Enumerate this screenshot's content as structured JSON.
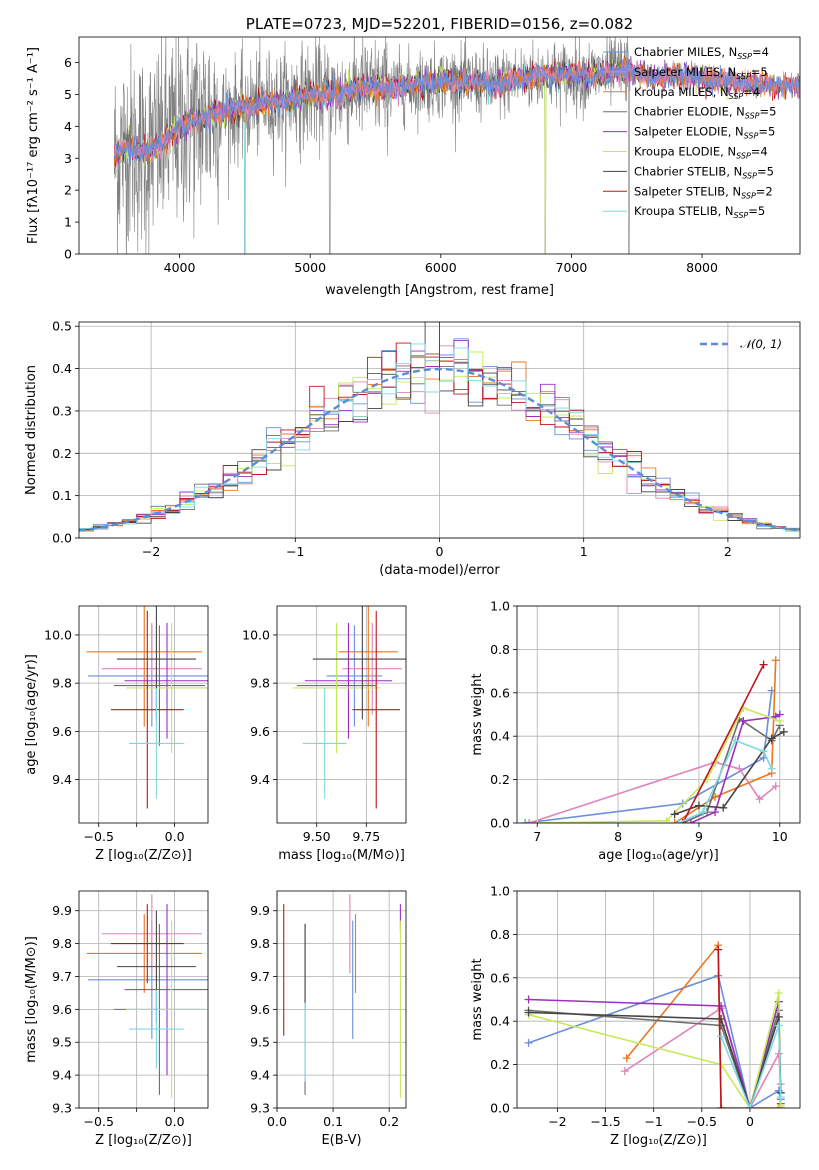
{
  "colors": {
    "Chabrier MILES": "#6a8fdc",
    "Salpeter MILES": "#e084b8",
    "Kroupa MILES": "#e87722",
    "Chabrier ELODIE": "#6e6e6e",
    "Salpeter ELODIE": "#9b30c0",
    "Kroupa ELODIE": "#c6e85c",
    "Chabrier STELIB": "#444444",
    "Salpeter STELIB": "#c0141c",
    "Kroupa STELIB": "#7fd8e0",
    "normal": "#5b8ed6",
    "data": "#808080"
  },
  "chart_data": [
    {
      "id": "spectrum",
      "type": "line",
      "title": "PLATE=0723, MJD=52201, FIBERID=0156, z=0.082",
      "xlabel": "wavelength [Angstrom, rest frame]",
      "ylabel": "Flux [fλ10⁻¹⁷ erg cm⁻² s⁻¹ A⁻¹]",
      "xlim": [
        3230,
        8750
      ],
      "ylim": [
        0,
        6.8
      ],
      "xticks": [
        4000,
        5000,
        6000,
        7000,
        8000
      ],
      "yticks": [
        0,
        1,
        2,
        3,
        4,
        5,
        6
      ],
      "legend_position": "right",
      "legend": [
        "Chabrier MILES, N_SSP=4",
        "Salpeter MILES, N_SSP=5",
        "Kroupa MILES, N_SSP=4",
        "Chabrier ELODIE, N_SSP=5",
        "Salpeter ELODIE, N_SSP=5",
        "Kroupa ELODIE, N_SSP=4",
        "Chabrier STELIB, N_SSP=5",
        "Salpeter STELIB, N_SSP=2",
        "Kroupa STELIB, N_SSP=5"
      ],
      "continuum": {
        "x": [
          3500,
          3600,
          3700,
          3800,
          3900,
          4000,
          4200,
          4400,
          4600,
          4800,
          5000,
          5200,
          5400,
          5600,
          5800,
          6000,
          6200,
          6400,
          6600,
          6800,
          7000,
          7200,
          7400
        ],
        "y": [
          3.0,
          3.4,
          3.2,
          3.3,
          3.6,
          4.0,
          4.3,
          4.5,
          4.7,
          4.8,
          5.0,
          5.0,
          5.2,
          5.2,
          5.3,
          5.4,
          5.4,
          5.3,
          5.5,
          5.6,
          5.6,
          5.6,
          5.8
        ]
      },
      "model_continuum": {
        "x": [
          7400,
          7600,
          7800,
          8000,
          8200,
          8400
        ],
        "y": [
          5.8,
          5.5,
          5.6,
          5.5,
          5.4,
          5.3
        ]
      },
      "data_range": [
        3500,
        7450
      ]
    },
    {
      "id": "residuals",
      "type": "bar",
      "xlabel": "(data-model)/error",
      "ylabel": "Normed distribution",
      "xlim": [
        -2.5,
        2.5
      ],
      "ylim": [
        0,
        0.51
      ],
      "xticks": [
        -2,
        -1,
        0,
        1,
        2
      ],
      "yticks": [
        0.0,
        0.1,
        0.2,
        0.3,
        0.4,
        0.5
      ],
      "legend_position": "top-right",
      "normal_label": "𝒩(0, 1)",
      "bin_width": 0.1
    },
    {
      "id": "age_vs_Z",
      "type": "scatter",
      "xlabel": "Z [log₁₀(Z/Z⊙)]",
      "ylabel": "age  [log₁₀(age/yr)]",
      "xlim": [
        -0.63,
        0.22
      ],
      "ylim": [
        9.22,
        10.12
      ],
      "xticks": [
        -0.5,
        -0.25,
        0.0
      ],
      "xticklabels": [
        "−0.5",
        "",
        "0.0"
      ],
      "yticks": [
        9.4,
        9.6,
        9.8,
        10.0
      ],
      "points": [
        {
          "model": "Chabrier MILES",
          "x": -0.15,
          "xerr": 0.42,
          "y": 9.83,
          "yerr": 0.21
        },
        {
          "model": "Salpeter MILES",
          "x": -0.15,
          "xerr": 0.33,
          "y": 9.86,
          "yerr": 0.19
        },
        {
          "model": "Kroupa MILES",
          "x": -0.2,
          "xerr": 0.38,
          "y": 9.93,
          "yerr": 0.31
        },
        {
          "model": "Chabrier ELODIE",
          "x": -0.1,
          "xerr": 0.3,
          "y": 9.79,
          "yerr": 0.25
        },
        {
          "model": "Salpeter ELODIE",
          "x": -0.05,
          "xerr": 0.28,
          "y": 9.81,
          "yerr": 0.24
        },
        {
          "model": "Kroupa ELODIE",
          "x": -0.02,
          "xerr": 0.3,
          "y": 9.78,
          "yerr": 0.27
        },
        {
          "model": "Chabrier STELIB",
          "x": -0.12,
          "xerr": 0.26,
          "y": 9.9,
          "yerr": 0.25
        },
        {
          "model": "Salpeter STELIB",
          "x": -0.18,
          "xerr": 0.24,
          "y": 9.69,
          "yerr": 0.41
        },
        {
          "model": "Kroupa STELIB",
          "x": -0.12,
          "xerr": 0.18,
          "y": 9.55,
          "yerr": 0.23
        }
      ]
    },
    {
      "id": "age_vs_mass",
      "type": "scatter",
      "xlabel": "mass [log₁₀(M/M⊙)]",
      "ylabel": "",
      "xlim": [
        9.3,
        9.95
      ],
      "ylim": [
        9.22,
        10.12
      ],
      "xticks": [
        9.5,
        9.75
      ],
      "xticklabels": [
        "9.50",
        "9.75"
      ],
      "yticks": [
        9.4,
        9.6,
        9.8,
        10.0
      ],
      "points": [
        {
          "model": "Chabrier MILES",
          "x": 9.69,
          "xerr": 0.14,
          "y": 9.83,
          "yerr": 0.21
        },
        {
          "model": "Salpeter MILES",
          "x": 9.78,
          "xerr": 0.15,
          "y": 9.86,
          "yerr": 0.19
        },
        {
          "model": "Kroupa MILES",
          "x": 9.76,
          "xerr": 0.15,
          "y": 9.93,
          "yerr": 0.31
        },
        {
          "model": "Chabrier ELODIE",
          "x": 9.6,
          "xerr": 0.2,
          "y": 9.79,
          "yerr": 0.25
        },
        {
          "model": "Salpeter ELODIE",
          "x": 9.66,
          "xerr": 0.22,
          "y": 9.81,
          "yerr": 0.24
        },
        {
          "model": "Kroupa ELODIE",
          "x": 9.6,
          "xerr": 0.22,
          "y": 9.78,
          "yerr": 0.27
        },
        {
          "model": "Chabrier STELIB",
          "x": 9.73,
          "xerr": 0.25,
          "y": 9.9,
          "yerr": 0.25
        },
        {
          "model": "Salpeter STELIB",
          "x": 9.8,
          "xerr": 0.12,
          "y": 9.69,
          "yerr": 0.41
        },
        {
          "model": "Kroupa STELIB",
          "x": 9.54,
          "xerr": 0.11,
          "y": 9.55,
          "yerr": 0.23
        }
      ]
    },
    {
      "id": "massweight_vs_age",
      "type": "line",
      "xlabel": "age  [log₁₀(age/yr)]",
      "ylabel": "mass weight",
      "xlim": [
        6.75,
        10.25
      ],
      "ylim": [
        0,
        1
      ],
      "xticks": [
        7,
        8,
        9,
        10
      ],
      "yticks": [
        0.0,
        0.2,
        0.4,
        0.6,
        0.8,
        1.0
      ],
      "series": [
        {
          "model": "Chabrier MILES",
          "x": [
            6.85,
            8.8,
            9.8,
            9.9
          ],
          "y": [
            0.0,
            0.09,
            0.3,
            0.61
          ]
        },
        {
          "model": "Salpeter MILES",
          "x": [
            6.9,
            9.2,
            9.5,
            9.75,
            9.95
          ],
          "y": [
            0.0,
            0.28,
            0.25,
            0.11,
            0.17
          ]
        },
        {
          "model": "Kroupa MILES",
          "x": [
            8.7,
            9.2,
            9.9,
            9.95
          ],
          "y": [
            0.0,
            0.12,
            0.23,
            0.75
          ]
        },
        {
          "model": "Chabrier ELODIE",
          "x": [
            8.8,
            9.1,
            9.5,
            9.9,
            10.0
          ],
          "y": [
            0.0,
            0.05,
            0.48,
            0.38,
            0.45
          ]
        },
        {
          "model": "Salpeter ELODIE",
          "x": [
            8.9,
            9.2,
            9.55,
            9.95,
            10.0
          ],
          "y": [
            0.0,
            0.05,
            0.47,
            0.49,
            0.5
          ]
        },
        {
          "model": "Kroupa ELODIE",
          "x": [
            7.0,
            8.6,
            9.1,
            9.55,
            10.0
          ],
          "y": [
            0.0,
            0.01,
            0.2,
            0.53,
            0.47
          ]
        },
        {
          "model": "Chabrier STELIB",
          "x": [
            8.7,
            9.0,
            9.3,
            9.9,
            10.05
          ],
          "y": [
            0.04,
            0.08,
            0.07,
            0.39,
            0.42
          ]
        },
        {
          "model": "Salpeter STELIB",
          "x": [
            8.8,
            9.8
          ],
          "y": [
            0.0,
            0.73
          ]
        },
        {
          "model": "Kroupa STELIB",
          "x": [
            8.75,
            9.05,
            9.45,
            9.8,
            9.9
          ],
          "y": [
            0.0,
            0.05,
            0.38,
            0.33,
            0.25
          ]
        }
      ]
    },
    {
      "id": "mass_vs_Z",
      "type": "scatter",
      "xlabel": "Z [log₁₀(Z/Z⊙)]",
      "ylabel": "mass [log₁₀(M/M⊙)]",
      "xlim": [
        -0.63,
        0.22
      ],
      "ylim": [
        9.3,
        9.96
      ],
      "xticks": [
        -0.5,
        -0.25,
        0.0
      ],
      "xticklabels": [
        "−0.5",
        "",
        "0.0"
      ],
      "yticks": [
        9.3,
        9.4,
        9.5,
        9.6,
        9.7,
        9.8,
        9.9
      ],
      "points": [
        {
          "model": "Chabrier MILES",
          "x": -0.15,
          "xerr": 0.42,
          "y": 9.69,
          "yerr": 0.18
        },
        {
          "model": "Salpeter MILES",
          "x": -0.15,
          "xerr": 0.33,
          "y": 9.83,
          "yerr": 0.12
        },
        {
          "model": "Kroupa MILES",
          "x": -0.2,
          "xerr": 0.38,
          "y": 9.77,
          "yerr": 0.12
        },
        {
          "model": "Chabrier ELODIE",
          "x": -0.1,
          "xerr": 0.3,
          "y": 9.6,
          "yerr": 0.26
        },
        {
          "model": "Salpeter ELODIE",
          "x": -0.05,
          "xerr": 0.28,
          "y": 9.66,
          "yerr": 0.26
        },
        {
          "model": "Kroupa ELODIE",
          "x": -0.02,
          "xerr": 0.3,
          "y": 9.6,
          "yerr": 0.27
        },
        {
          "model": "Chabrier STELIB",
          "x": -0.12,
          "xerr": 0.26,
          "y": 9.73,
          "yerr": 0.17
        },
        {
          "model": "Salpeter STELIB",
          "x": -0.18,
          "xerr": 0.24,
          "y": 9.8,
          "yerr": 0.12
        },
        {
          "model": "Kroupa STELIB",
          "x": -0.12,
          "xerr": 0.18,
          "y": 9.54,
          "yerr": 0.12
        }
      ]
    },
    {
      "id": "mass_vs_ebv",
      "type": "scatter",
      "xlabel": "E(B-V)",
      "ylabel": "",
      "xlim": [
        0.0,
        0.23
      ],
      "ylim": [
        9.3,
        9.96
      ],
      "xticks": [
        0.0,
        0.1,
        0.2
      ],
      "xticklabels": [
        "0.0",
        "0.1",
        "0.2"
      ],
      "yticks": [
        9.3,
        9.4,
        9.5,
        9.6,
        9.7,
        9.8,
        9.9
      ],
      "points": [
        {
          "model": "Chabrier MILES",
          "x": 0.135,
          "xerr": 0,
          "y": 9.69,
          "yerr": 0.18
        },
        {
          "model": "Salpeter MILES",
          "x": 0.13,
          "xerr": 0,
          "y": 9.83,
          "yerr": 0.12
        },
        {
          "model": "Kroupa MILES",
          "x": 0.14,
          "xerr": 0,
          "y": 9.77,
          "yerr": 0.12
        },
        {
          "model": "Chabrier ELODIE",
          "x": 0.05,
          "xerr": 0,
          "y": 9.6,
          "yerr": 0.26
        },
        {
          "model": "Salpeter ELODIE",
          "x": 0.22,
          "xerr": 0,
          "y": 9.88,
          "yerr": 0.04
        },
        {
          "model": "Kroupa ELODIE",
          "x": 0.22,
          "xerr": 0,
          "y": 9.6,
          "yerr": 0.27
        },
        {
          "model": "Chabrier STELIB",
          "x": 0.05,
          "xerr": 0,
          "y": 9.73,
          "yerr": 0.13
        },
        {
          "model": "Salpeter STELIB",
          "x": 0.012,
          "xerr": 0,
          "y": 9.72,
          "yerr": 0.2
        },
        {
          "model": "Kroupa STELIB",
          "x": 0.05,
          "xerr": 0,
          "y": 9.5,
          "yerr": 0.12
        }
      ]
    },
    {
      "id": "massweight_vs_Z",
      "type": "line",
      "xlabel": "Z [log₁₀(Z/Z⊙)]",
      "ylabel": "mass weight",
      "xlim": [
        -2.42,
        0.52
      ],
      "ylim": [
        0,
        1
      ],
      "xticks": [
        -2.0,
        -1.5,
        -1.0,
        -0.5,
        0.0
      ],
      "yticks": [
        0.0,
        0.2,
        0.4,
        0.6,
        0.8,
        1.0
      ],
      "series": [
        {
          "model": "Chabrier MILES",
          "x": [
            -2.3,
            -0.33,
            0.0,
            0.3,
            0.32
          ],
          "y": [
            0.3,
            0.61,
            0.0,
            0.08,
            0.04
          ]
        },
        {
          "model": "Salpeter MILES",
          "x": [
            -1.3,
            -0.3,
            0.0,
            0.3,
            0.32
          ],
          "y": [
            0.17,
            0.46,
            0.0,
            0.25,
            0.11
          ]
        },
        {
          "model": "Kroupa MILES",
          "x": [
            -1.28,
            -0.33,
            -0.3,
            0.0,
            0.3
          ],
          "y": [
            0.23,
            0.75,
            0.0,
            0.0,
            0.0
          ]
        },
        {
          "model": "Chabrier ELODIE",
          "x": [
            -2.3,
            -0.3,
            0.0,
            0.3,
            0.32
          ],
          "y": [
            0.45,
            0.38,
            0.0,
            0.45,
            0.02
          ]
        },
        {
          "model": "Salpeter ELODIE",
          "x": [
            -2.3,
            -0.3,
            0.0,
            0.3,
            0.32
          ],
          "y": [
            0.5,
            0.47,
            0.0,
            0.49,
            0.0
          ]
        },
        {
          "model": "Kroupa ELODIE",
          "x": [
            -2.3,
            -0.3,
            0.0,
            0.3,
            0.32
          ],
          "y": [
            0.43,
            0.2,
            0.0,
            0.53,
            0.01
          ]
        },
        {
          "model": "Chabrier STELIB",
          "x": [
            -2.3,
            -0.3,
            0.0,
            0.3,
            0.32
          ],
          "y": [
            0.44,
            0.41,
            0.0,
            0.42,
            0.07
          ]
        },
        {
          "model": "Salpeter STELIB",
          "x": [
            -0.33,
            -0.3
          ],
          "y": [
            0.73,
            0.0
          ]
        },
        {
          "model": "Kroupa STELIB",
          "x": [
            -0.3,
            0.0,
            0.3,
            0.32
          ],
          "y": [
            0.33,
            0.0,
            0.38,
            0.05
          ]
        }
      ]
    }
  ]
}
